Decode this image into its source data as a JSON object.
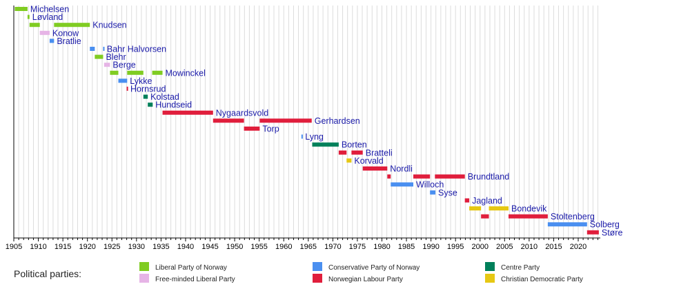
{
  "chart_data": {
    "type": "timeline",
    "xlim": [
      1905,
      2024.5
    ],
    "x_ticks": [
      1905,
      1910,
      1915,
      1920,
      1925,
      1930,
      1935,
      1940,
      1945,
      1950,
      1955,
      1960,
      1965,
      1970,
      1975,
      1980,
      1985,
      1990,
      1995,
      2000,
      2005,
      2010,
      2015,
      2020
    ],
    "grid": "vertical yearly",
    "legend_title": "Political parties:",
    "legend_placement": "bottom",
    "parties": [
      {
        "key": "V",
        "name": "Liberal Party of Norway",
        "color": "#80cc22"
      },
      {
        "key": "H",
        "name": "Conservative Party of Norway",
        "color": "#4a8ff0"
      },
      {
        "key": "Sp",
        "name": "Centre Party",
        "color": "#00805a"
      },
      {
        "key": "FV",
        "name": "Free-minded Liberal Party",
        "color": "#e6b4e6"
      },
      {
        "key": "Ap",
        "name": "Norwegian Labour Party",
        "color": "#e01e3c"
      },
      {
        "key": "KrF",
        "name": "Christian Democratic Party",
        "color": "#e6c814"
      }
    ],
    "rows": [
      {
        "name": "Michelsen",
        "terms": [
          [
            1905.2,
            1907.8,
            "V"
          ]
        ]
      },
      {
        "name": "Løvland",
        "terms": [
          [
            1907.8,
            1908.2,
            "V"
          ]
        ]
      },
      {
        "name": "Knudsen",
        "terms": [
          [
            1908.2,
            1910.3,
            "V"
          ],
          [
            1913.2,
            1920.5,
            "V"
          ]
        ]
      },
      {
        "name": "Konow",
        "terms": [
          [
            1910.3,
            1912.3,
            "FV"
          ]
        ]
      },
      {
        "name": "Bratlie",
        "terms": [
          [
            1912.3,
            1913.2,
            "H"
          ]
        ]
      },
      {
        "name": "Bahr Halvorsen",
        "terms": [
          [
            1920.5,
            1921.5,
            "H"
          ],
          [
            1923.2,
            1923.4,
            "H"
          ]
        ]
      },
      {
        "name": "Blehr",
        "terms": [
          [
            1921.5,
            1923.2,
            "V"
          ]
        ]
      },
      {
        "name": "Berge",
        "terms": [
          [
            1923.4,
            1924.6,
            "FV"
          ]
        ]
      },
      {
        "name": "Mowinckel",
        "terms": [
          [
            1924.6,
            1926.3,
            "V"
          ],
          [
            1928.1,
            1931.4,
            "V"
          ],
          [
            1933.2,
            1935.3,
            "V"
          ]
        ]
      },
      {
        "name": "Lykke",
        "terms": [
          [
            1926.3,
            1928.1,
            "H"
          ]
        ]
      },
      {
        "name": "Hornsrud",
        "terms": [
          [
            1928.0,
            1928.2,
            "Ap"
          ]
        ]
      },
      {
        "name": "Kolstad",
        "terms": [
          [
            1931.4,
            1932.3,
            "Sp"
          ]
        ]
      },
      {
        "name": "Hundseid",
        "terms": [
          [
            1932.3,
            1933.3,
            "Sp"
          ]
        ]
      },
      {
        "name": "Nygaardsvold",
        "terms": [
          [
            1935.3,
            1945.6,
            "Ap"
          ]
        ]
      },
      {
        "name": "Gerhardsen",
        "terms": [
          [
            1945.6,
            1951.9,
            "Ap"
          ],
          [
            1955.1,
            1965.7,
            "Ap"
          ]
        ]
      },
      {
        "name": "Torp",
        "terms": [
          [
            1951.9,
            1955.1,
            "Ap"
          ]
        ]
      },
      {
        "name": "Lyng",
        "terms": [
          [
            1963.6,
            1963.8,
            "H"
          ]
        ]
      },
      {
        "name": "Borten",
        "terms": [
          [
            1965.8,
            1971.2,
            "Sp"
          ]
        ]
      },
      {
        "name": "Bratteli",
        "terms": [
          [
            1971.2,
            1972.8,
            "Ap"
          ],
          [
            1973.8,
            1976.1,
            "Ap"
          ]
        ]
      },
      {
        "name": "Korvald",
        "terms": [
          [
            1972.8,
            1973.8,
            "KrF"
          ]
        ]
      },
      {
        "name": "Nordli",
        "terms": [
          [
            1976.1,
            1981.1,
            "Ap"
          ]
        ]
      },
      {
        "name": "Brundtland",
        "terms": [
          [
            1981.1,
            1981.8,
            "Ap"
          ],
          [
            1986.4,
            1989.8,
            "Ap"
          ],
          [
            1990.8,
            1996.9,
            "Ap"
          ]
        ]
      },
      {
        "name": "Willoch",
        "terms": [
          [
            1981.8,
            1986.4,
            "H"
          ]
        ]
      },
      {
        "name": "Syse",
        "terms": [
          [
            1989.8,
            1990.9,
            "H"
          ]
        ]
      },
      {
        "name": "Jagland",
        "terms": [
          [
            1996.9,
            1997.8,
            "Ap"
          ]
        ]
      },
      {
        "name": "Bondevik",
        "terms": [
          [
            1997.8,
            2000.2,
            "KrF"
          ],
          [
            2001.8,
            2005.8,
            "KrF"
          ]
        ]
      },
      {
        "name": "Stoltenberg",
        "terms": [
          [
            2000.2,
            2001.8,
            "Ap"
          ],
          [
            2005.8,
            2013.8,
            "Ap"
          ]
        ]
      },
      {
        "name": "Solberg",
        "terms": [
          [
            2013.8,
            2021.8,
            "H"
          ]
        ]
      },
      {
        "name": "Støre",
        "terms": [
          [
            2021.8,
            2024.2,
            "Ap"
          ]
        ]
      }
    ]
  }
}
